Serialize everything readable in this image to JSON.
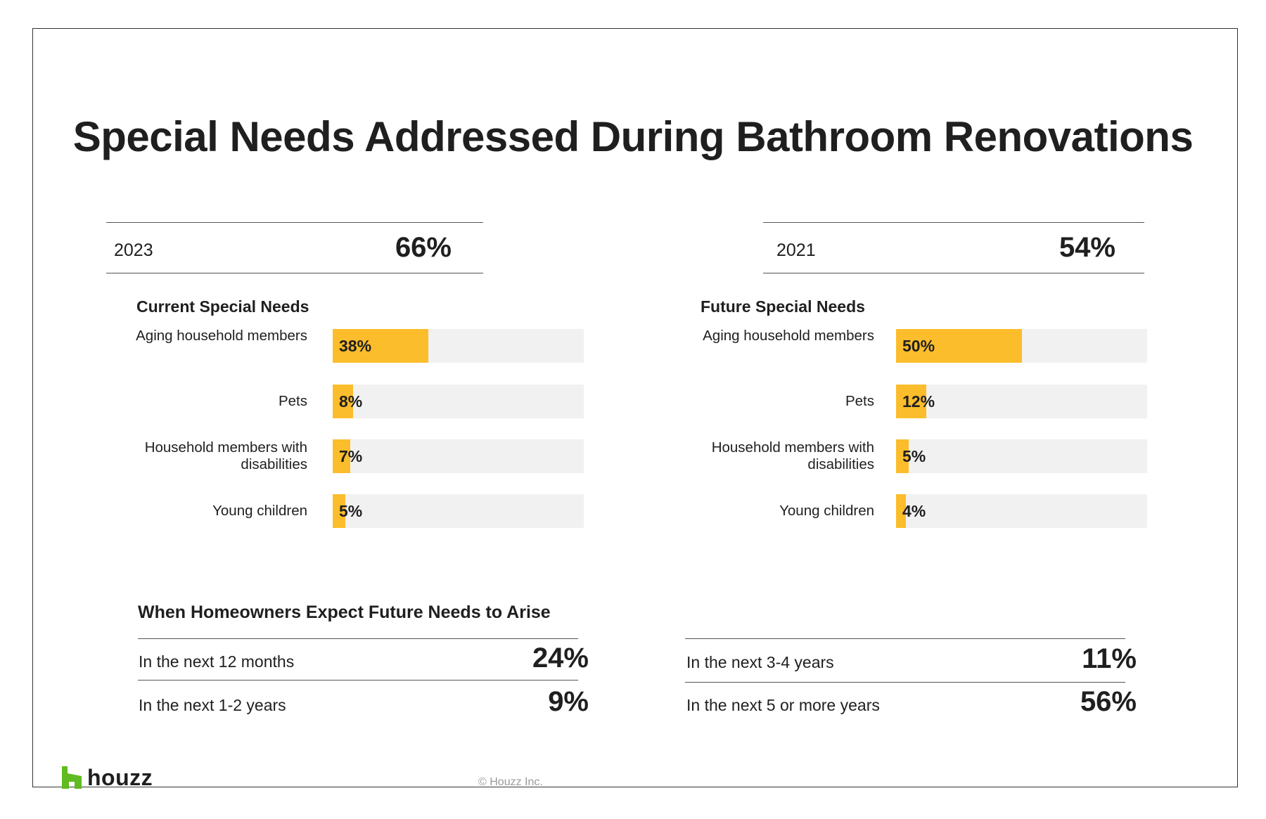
{
  "title": "Special Needs Addressed During Bathroom Renovations",
  "summary": [
    {
      "year": "2023",
      "value": "66%"
    },
    {
      "year": "2021",
      "value": "54%"
    }
  ],
  "colors": {
    "bar": "#fbbd2b",
    "track": "#f1f1f1",
    "text": "#1f1f1f",
    "logo_green": "#5fbb1f"
  },
  "chart_data": [
    {
      "type": "bar",
      "orientation": "horizontal",
      "title": "Current Special Needs",
      "categories": [
        "Aging household members",
        "Pets",
        "Household members with disabilities",
        "Young children"
      ],
      "values": [
        38,
        8,
        7,
        5
      ],
      "value_labels": [
        "38%",
        "8%",
        "7%",
        "5%"
      ],
      "xlim": [
        0,
        100
      ]
    },
    {
      "type": "bar",
      "orientation": "horizontal",
      "title": "Future Special Needs",
      "categories": [
        "Aging household members",
        "Pets",
        "Household members with disabilities",
        "Young children"
      ],
      "values": [
        50,
        12,
        5,
        4
      ],
      "value_labels": [
        "50%",
        "12%",
        "5%",
        "4%"
      ],
      "xlim": [
        0,
        100
      ]
    }
  ],
  "timing": {
    "heading": "When Homeowners Expect Future Needs to Arise",
    "rows": [
      {
        "label": "In the next 12 months",
        "value": "24%"
      },
      {
        "label": "In the next 1-2 years",
        "value": "9%"
      },
      {
        "label": "In the next 3-4 years",
        "value": "11%"
      },
      {
        "label": "In the next 5 or more years",
        "value": "56%"
      }
    ]
  },
  "footer": {
    "logo_text": "houzz",
    "logo_icon": "houzz-logo-icon",
    "copyright": "© Houzz Inc."
  }
}
